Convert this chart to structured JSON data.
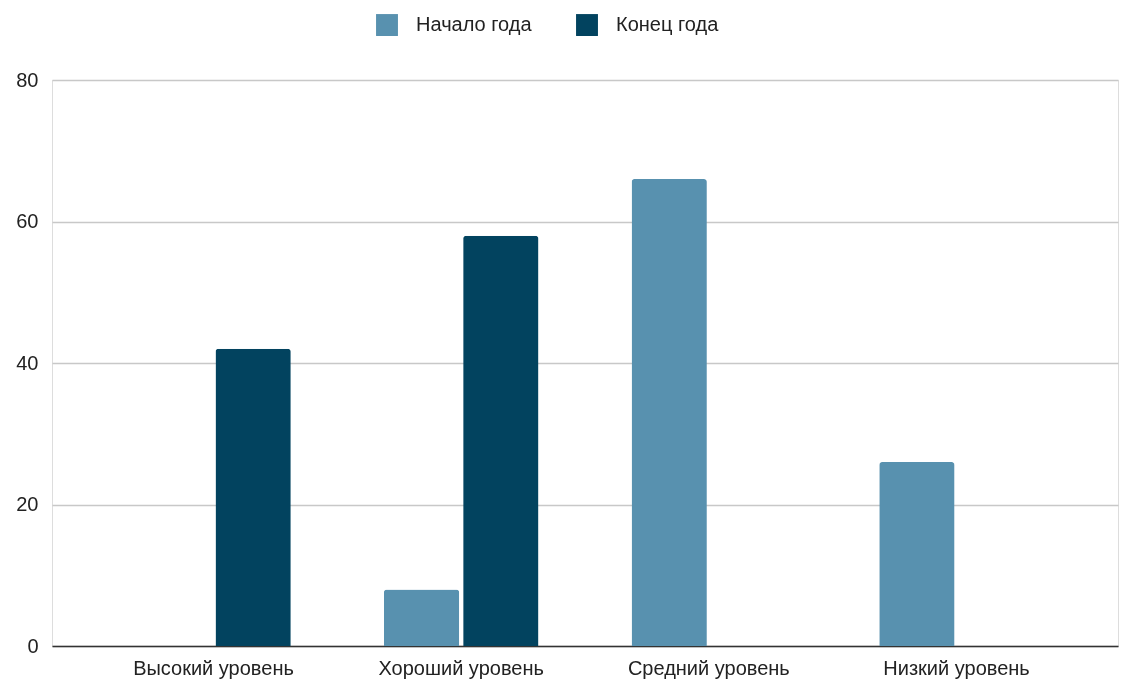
{
  "chart_data": {
    "type": "bar",
    "categories": [
      "Высокий уровень",
      "Хороший уровень",
      "Средний уровень",
      "Низкий уровень"
    ],
    "series": [
      {
        "name": "Начало года",
        "color": "#5891af",
        "values": [
          0,
          8,
          66,
          26
        ]
      },
      {
        "name": "Конец года",
        "color": "#02435f",
        "values": [
          42,
          58,
          0,
          0
        ]
      }
    ],
    "ylim": [
      0,
      80
    ],
    "yticks": [
      0,
      20,
      40,
      60,
      80
    ],
    "grid": "y",
    "legend": "top"
  }
}
